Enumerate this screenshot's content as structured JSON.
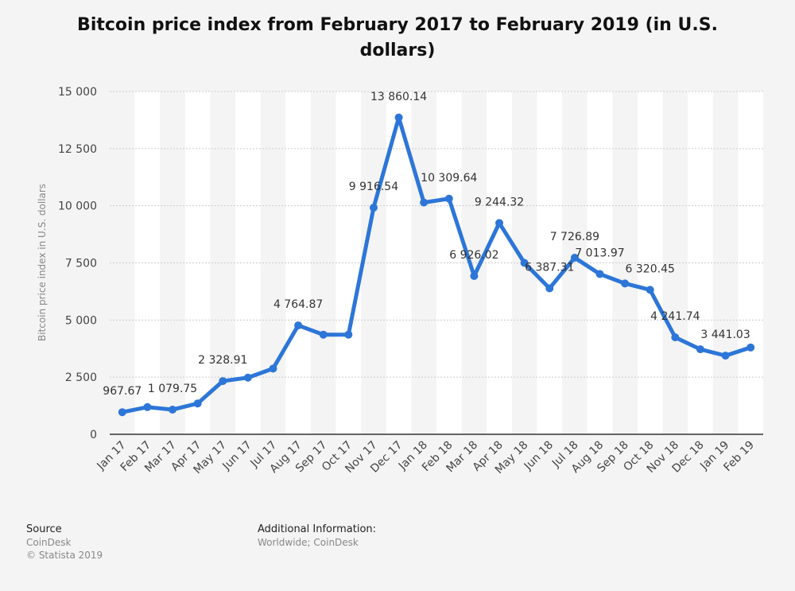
{
  "chart_data": {
    "type": "line",
    "title": "Bitcoin price index from February 2017 to February 2019 (in U.S. dollars)",
    "xlabel": "",
    "ylabel": "Bitcoin price index in U.S. dollars",
    "ylim": [
      0,
      15000
    ],
    "yticks": [
      0,
      2500,
      5000,
      7500,
      10000,
      12500,
      15000
    ],
    "ytick_labels": [
      "0",
      "2 500",
      "5 000",
      "7 500",
      "10 000",
      "12 500",
      "15 000"
    ],
    "grid": true,
    "categories": [
      "Jan 17",
      "Feb 17",
      "Mar 17",
      "Apr 17",
      "May 17",
      "Jun 17",
      "Jul 17",
      "Aug 17",
      "Sep 17",
      "Oct 17",
      "Nov 17",
      "Dec 17",
      "Jan 18",
      "Feb 18",
      "Mar 18",
      "Apr 18",
      "May 18",
      "Jun 18",
      "Jul 18",
      "Aug 18",
      "Sep 18",
      "Oct 18",
      "Nov 18",
      "Dec 18",
      "Jan 19",
      "Feb 19"
    ],
    "values": [
      967.67,
      1190,
      1079.75,
      1350,
      2328.91,
      2480,
      2875,
      4764.87,
      4360,
      4360,
      9916.54,
      13860.14,
      10140,
      10309.64,
      6926.02,
      9244.32,
      7500,
      6387.31,
      7726.89,
      7013.97,
      6600,
      6320.45,
      4241.74,
      3720,
      3441.03,
      3800
    ],
    "data_labels": [
      {
        "index": 0,
        "text": "967.67"
      },
      {
        "index": 2,
        "text": "1 079.75"
      },
      {
        "index": 4,
        "text": "2 328.91"
      },
      {
        "index": 7,
        "text": "4 764.87"
      },
      {
        "index": 10,
        "text": "9 916.54"
      },
      {
        "index": 11,
        "text": "13 860.14"
      },
      {
        "index": 13,
        "text": "10 309.64"
      },
      {
        "index": 14,
        "text": "6 926.02"
      },
      {
        "index": 15,
        "text": "9 244.32"
      },
      {
        "index": 17,
        "text": "6 387.31"
      },
      {
        "index": 18,
        "text": "7 726.89"
      },
      {
        "index": 19,
        "text": "7 013.97"
      },
      {
        "index": 21,
        "text": "6 320.45"
      },
      {
        "index": 22,
        "text": "4 241.74"
      },
      {
        "index": 24,
        "text": "3 441.03"
      }
    ],
    "colors": {
      "line": "#2d76d8",
      "grid": "#cccccc",
      "band": "#ffffff"
    }
  },
  "footer": {
    "source_heading": "Source",
    "source_lines": [
      "CoinDesk",
      "© Statista 2019"
    ],
    "additional_heading": "Additional Information:",
    "additional_text": "Worldwide; CoinDesk"
  }
}
